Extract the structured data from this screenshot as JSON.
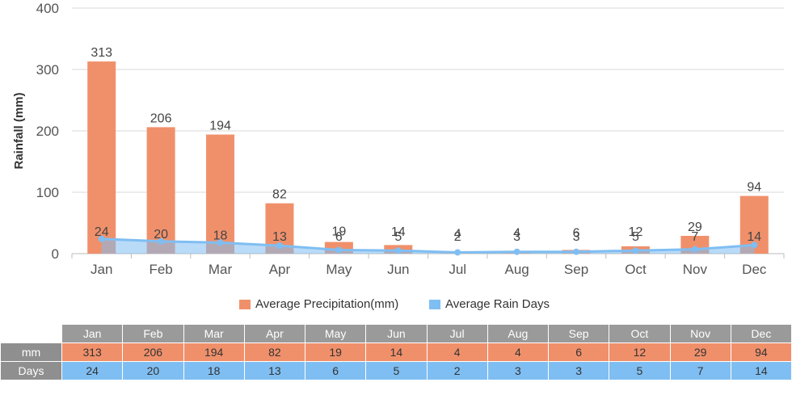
{
  "chart_data": {
    "type": "bar",
    "categories": [
      "Jan",
      "Feb",
      "Mar",
      "Apr",
      "May",
      "Jun",
      "Jul",
      "Aug",
      "Sep",
      "Oct",
      "Nov",
      "Dec"
    ],
    "series": [
      {
        "name": "Average Precipitation(mm)",
        "type": "bar",
        "color": "#f0906b",
        "values": [
          313,
          206,
          194,
          82,
          19,
          14,
          4,
          4,
          6,
          12,
          29,
          94
        ]
      },
      {
        "name": "Average Rain Days",
        "type": "area",
        "color": "#7fbef2",
        "values": [
          24,
          20,
          18,
          13,
          6,
          5,
          2,
          3,
          3,
          5,
          7,
          14
        ]
      }
    ],
    "ylabel": "Rainfall (mm)",
    "yticks": [
      0,
      100,
      200,
      300,
      400
    ],
    "ylim": [
      0,
      400
    ],
    "grid": true,
    "legend_position": "bottom"
  },
  "table": {
    "header": [
      "Jan",
      "Feb",
      "Mar",
      "Apr",
      "May",
      "Jun",
      "Jul",
      "Aug",
      "Sep",
      "Oct",
      "Nov",
      "Dec"
    ],
    "rows": [
      {
        "label": "mm",
        "values": [
          "313",
          "206",
          "194",
          "82",
          "19",
          "14",
          "4",
          "4",
          "6",
          "12",
          "29",
          "94"
        ]
      },
      {
        "label": "Days",
        "values": [
          "24",
          "20",
          "18",
          "13",
          "6",
          "5",
          "2",
          "3",
          "3",
          "5",
          "7",
          "14"
        ]
      }
    ]
  }
}
